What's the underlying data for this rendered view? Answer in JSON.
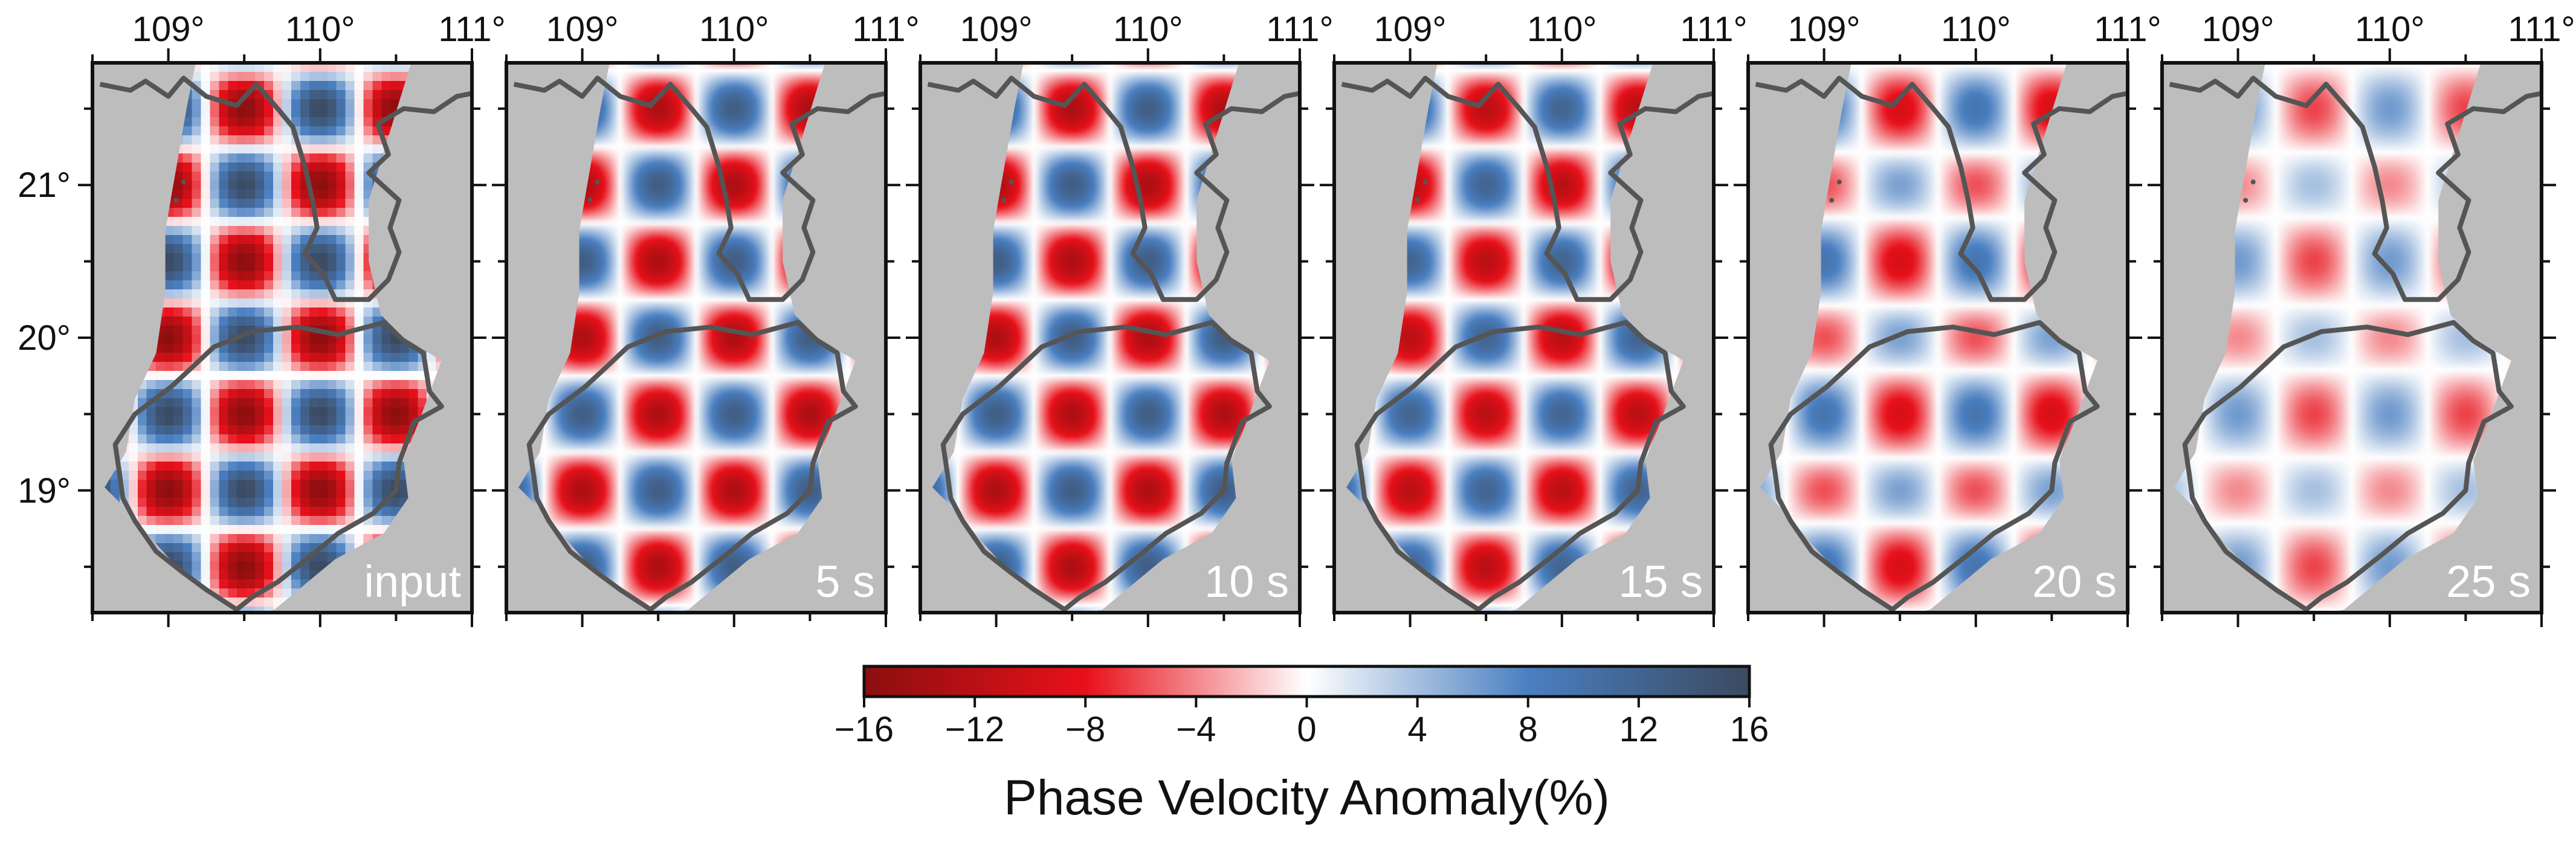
{
  "chart_data": {
    "type": "heatmap",
    "layout": "small-multiples map panels",
    "x_axis": {
      "ticks": [
        "109°",
        "110°",
        "111°"
      ],
      "tick_values": [
        109,
        110,
        111
      ],
      "range": [
        108.5,
        111.0
      ]
    },
    "y_axis": {
      "ticks": [
        "19°",
        "20°",
        "21°"
      ],
      "tick_values": [
        19,
        20,
        21
      ],
      "range": [
        18.2,
        21.8
      ]
    },
    "panels": [
      {
        "label": "input",
        "amplitude": 16,
        "blocky": true
      },
      {
        "label": "5 s",
        "amplitude": 13,
        "blocky": false
      },
      {
        "label": "10 s",
        "amplitude": 13,
        "blocky": false
      },
      {
        "label": "15 s",
        "amplitude": 12,
        "blocky": false
      },
      {
        "label": "20 s",
        "amplitude": 9,
        "blocky": false
      },
      {
        "label": "25 s",
        "amplitude": 6,
        "blocky": false
      }
    ],
    "colorbar": {
      "title": "Phase Velocity Anomaly(%)",
      "range": [
        -16,
        16
      ],
      "ticks": [
        "−16",
        "−12",
        "−8",
        "−4",
        "0",
        "4",
        "8",
        "12",
        "16"
      ],
      "tick_values": [
        -16,
        -12,
        -8,
        -4,
        0,
        4,
        8,
        12,
        16
      ],
      "stops": [
        {
          "value": -16,
          "color": "#8b0f0f"
        },
        {
          "value": -8,
          "color": "#e8101a"
        },
        {
          "value": 0,
          "color": "#ffffff"
        },
        {
          "value": 8,
          "color": "#4a7fc1"
        },
        {
          "value": 16,
          "color": "#3b4a60"
        }
      ]
    },
    "colors": {
      "land_background": "#bdbdbd",
      "coastline": "#555555",
      "frame": "#111111"
    }
  }
}
